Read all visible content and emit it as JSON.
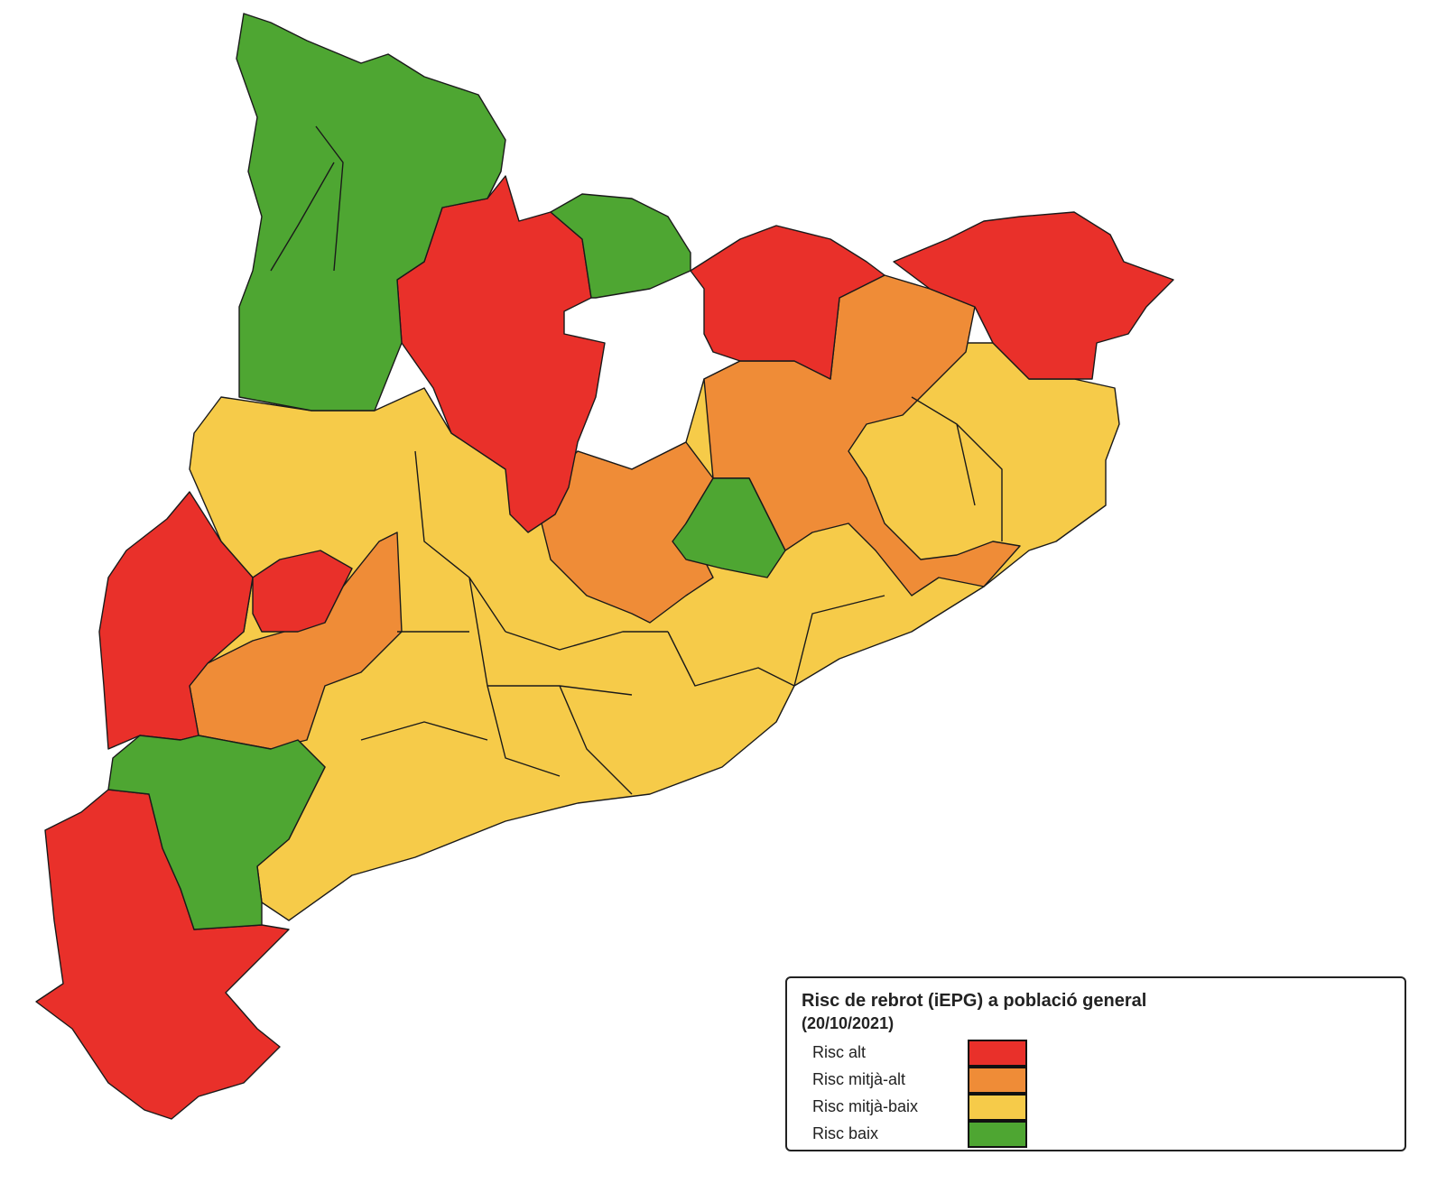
{
  "legend": {
    "title": "Risc de rebrot (iEPG) a població general",
    "date": "(20/10/2021)",
    "items": [
      {
        "label": "Risc alt",
        "color": "#e9302a"
      },
      {
        "label": "Risc mitjà-alt",
        "color": "#ef8c37"
      },
      {
        "label": "Risc mitjà-baix",
        "color": "#f6cb49"
      },
      {
        "label": "Risc baix",
        "color": "#4ea632"
      }
    ]
  }
}
